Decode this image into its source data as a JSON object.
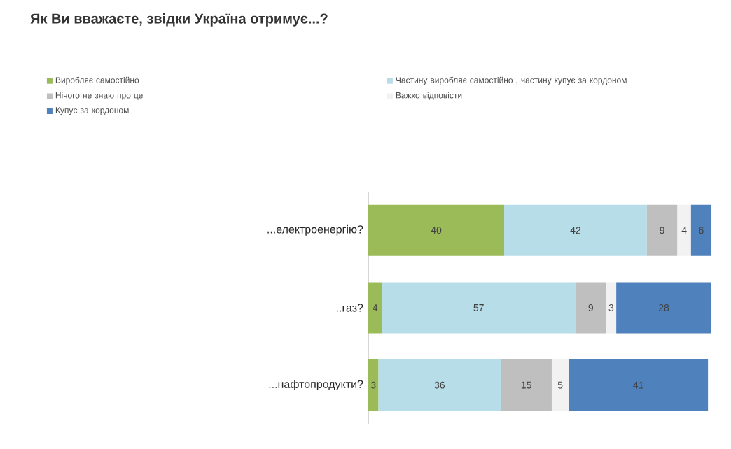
{
  "chart_data": {
    "type": "bar",
    "orientation": "horizontal",
    "stacked": true,
    "data_labels": true,
    "legend": "top",
    "title": "Як Ви вважаєте, звідки Україна отримує...?",
    "categories": [
      "...електроенергію?",
      "..газ?",
      "...нафтопродукти?"
    ],
    "series": [
      {
        "name": "Виробляє самостійно",
        "color": "#9bbb59",
        "values": [
          40,
          4,
          3
        ]
      },
      {
        "name": "Частину виробляє самостійно , частину купує за кордоном",
        "color": "#b7dde8",
        "values": [
          42,
          57,
          36
        ]
      },
      {
        "name": "Нічого не знаю про це",
        "color": "#bfbfbf",
        "values": [
          9,
          9,
          15
        ]
      },
      {
        "name": "Важко відповісти",
        "color": "#f2f2f2",
        "values": [
          4,
          3,
          5
        ]
      },
      {
        "name": "Купує за кордоном",
        "color": "#4f81bd",
        "values": [
          6,
          28,
          41
        ]
      }
    ]
  }
}
